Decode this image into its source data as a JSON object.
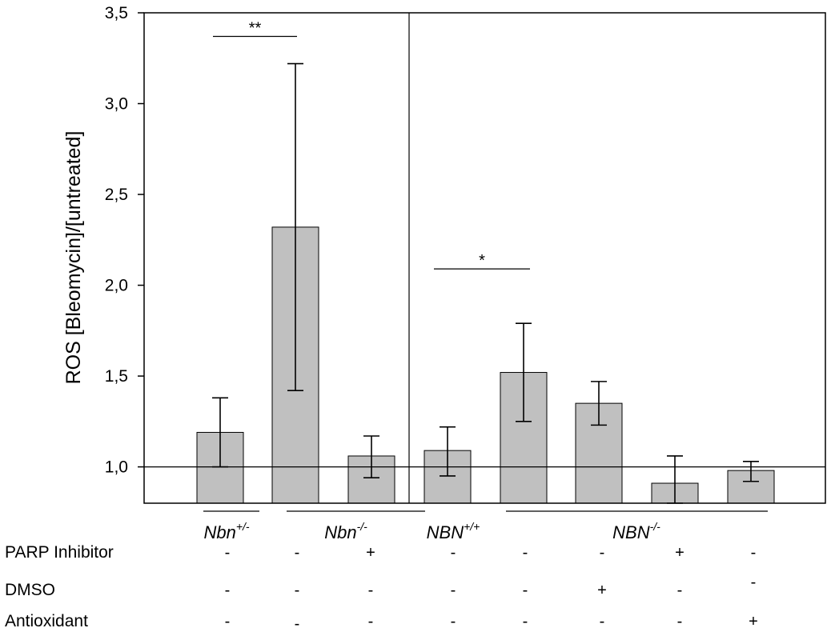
{
  "chart_data": {
    "type": "bar",
    "ylabel": "ROS [Bleomycin]/[untreated]",
    "ylim": [
      0.8,
      3.5
    ],
    "yticks": [
      1.0,
      1.5,
      2.0,
      2.5,
      3.0,
      3.5
    ],
    "ytick_labels": [
      "1,0",
      "1,5",
      "2,0",
      "2,5",
      "3,0",
      "3,5"
    ],
    "reference_line": 1.0,
    "bar_color": "#c0c0c0",
    "bars": [
      {
        "value": 1.19,
        "err_low": 1.0,
        "err_high": 1.38
      },
      {
        "value": 2.32,
        "err_low": 1.42,
        "err_high": 3.22
      },
      {
        "value": 1.06,
        "err_low": 0.94,
        "err_high": 1.17
      },
      {
        "value": 1.09,
        "err_low": 0.95,
        "err_high": 1.22
      },
      {
        "value": 1.52,
        "err_low": 1.25,
        "err_high": 1.79
      },
      {
        "value": 1.35,
        "err_low": 1.23,
        "err_high": 1.47
      },
      {
        "value": 0.91,
        "err_low": 0.8,
        "err_high": 1.06
      },
      {
        "value": 0.98,
        "err_low": 0.92,
        "err_high": 1.03
      }
    ],
    "significance": [
      {
        "label": "**",
        "from_bar": 0,
        "to_bar": 1,
        "y": 3.37
      },
      {
        "label": "*",
        "from_bar": 3,
        "to_bar": 4,
        "y": 2.09
      }
    ],
    "groups": [
      {
        "base": "Nbn",
        "sup": "+/-",
        "bars": [
          0
        ]
      },
      {
        "base": "Nbn",
        "sup": "-/-",
        "bars": [
          1,
          2
        ]
      },
      {
        "base": "NBN",
        "sup": "+/+",
        "bars": [
          3
        ]
      },
      {
        "base": "NBN",
        "sup": "-/-",
        "bars": [
          4,
          5,
          6,
          7
        ]
      }
    ],
    "conditions": [
      {
        "name": "PARP Inhibitor",
        "values": [
          "-",
          "-",
          "+",
          "-",
          "-",
          "-",
          "+",
          "-"
        ]
      },
      {
        "name": "DMSO",
        "values": [
          "-",
          "-",
          "-",
          "-",
          "-",
          "+",
          "-",
          "-"
        ]
      },
      {
        "name": "Antioxidant",
        "values": [
          "-",
          "-",
          "-",
          "-",
          "-",
          "-",
          "-",
          "+"
        ]
      }
    ]
  }
}
